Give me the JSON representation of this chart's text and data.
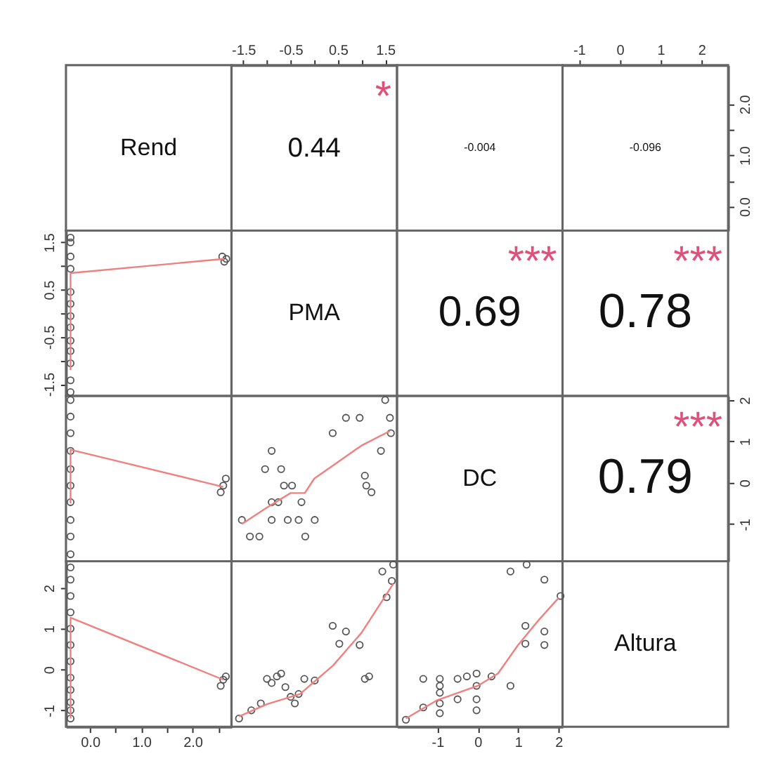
{
  "chart_data": [
    {
      "type": "other",
      "annotations": [
        "Rend"
      ]
    },
    {
      "type": "scatter",
      "annotations": [
        "0.44",
        "*"
      ],
      "xlim": [
        -1.75,
        1.75
      ],
      "xticks": [
        -1.5,
        {
          "value": -1,
          "label": null
        },
        -0.5,
        {
          "value": 0,
          "label": null
        },
        0.5,
        {
          "value": 1,
          "label": null
        },
        1.5
      ],
      "ylim": [
        -0.47,
        2.76
      ],
      "tick_labels": "x"
    },
    {
      "type": "other",
      "annotations": [
        "-0.004"
      ]
    },
    {
      "type": "scatter",
      "annotations": [
        "-0.096"
      ],
      "xlim": [
        -1.4,
        2.65
      ],
      "xticks": [
        -1,
        0,
        1,
        2
      ],
      "ylim": [
        -0.47,
        2.76
      ],
      "yticks": [
        {
          "value": 0,
          "label": "0.0"
        },
        {
          "value": 0.5,
          "label": null
        },
        {
          "value": 1,
          "label": "1.0"
        },
        {
          "value": 1.5,
          "label": null
        },
        {
          "value": 2,
          "label": "2.0"
        }
      ]
    },
    {
      "type": "scatter",
      "xlim": [
        -0.47,
        2.76
      ],
      "ylim": [
        -1.75,
        1.75
      ],
      "yticks": [
        -1.5,
        {
          "value": -1,
          "label": null
        },
        -0.5,
        {
          "value": 0,
          "label": null
        },
        0.5,
        {
          "value": 1,
          "label": null
        },
        1.5
      ],
      "tick_labels": "y",
      "series": [
        {
          "type": "scatter",
          "marker": "circle",
          "color": "#555555",
          "x": [
            -0.38,
            -0.38,
            -0.38,
            -0.38,
            -0.38,
            -0.38,
            -0.38,
            -0.38,
            -0.38,
            -0.38,
            -0.38,
            -0.38,
            -0.38,
            2.58,
            2.62,
            2.66
          ],
          "values": [
            1.6,
            1.5,
            1.2,
            0.94,
            0.45,
            0.2,
            -0.06,
            -0.3,
            -0.58,
            -0.8,
            -1.06,
            -1.42,
            -1.67,
            1.2,
            1.09,
            1.15
          ]
        },
        {
          "type": "line",
          "color": "#f08080",
          "x": [
            -0.38,
            -0.38,
            2.62
          ],
          "values": [
            -1.2,
            0.85,
            1.15
          ]
        }
      ]
    },
    {
      "type": "other",
      "annotations": [
        "PMA"
      ]
    },
    {
      "type": "other",
      "annotations": [
        "0.69",
        "***"
      ]
    },
    {
      "type": "other",
      "annotations": [
        "0.78",
        "***"
      ]
    },
    {
      "type": "scatter",
      "xlim": [
        -0.47,
        2.76
      ],
      "ylim": [
        -1.9,
        2.1
      ],
      "tick_labels": false,
      "series": [
        {
          "type": "scatter",
          "marker": "circle",
          "color": "#555555",
          "x": [
            -0.38,
            -0.38,
            -0.38,
            -0.38,
            -0.38,
            -0.38,
            -0.38,
            -0.38,
            -0.38,
            -0.38,
            2.55,
            2.6,
            2.65
          ],
          "values": [
            2.0,
            1.6,
            1.2,
            0.77,
            0.33,
            -0.07,
            -0.47,
            -0.9,
            -1.3,
            -1.73,
            -0.23,
            -0.07,
            0.1
          ]
        },
        {
          "type": "line",
          "color": "#f08080",
          "x": [
            -0.38,
            -0.38,
            2.6
          ],
          "values": [
            -0.5,
            0.8,
            -0.1
          ]
        }
      ]
    },
    {
      "type": "scatter",
      "xlim": [
        -1.75,
        1.75
      ],
      "ylim": [
        -1.9,
        2.1
      ],
      "tick_labels": false,
      "series": [
        {
          "type": "scatter",
          "marker": "circle",
          "color": "#555555",
          "x": [
            -1.53,
            -1.36,
            -1.16,
            -0.9,
            -1.04,
            -0.7,
            -0.64,
            -0.47,
            -0.9,
            -0.76,
            -0.27,
            -0.9,
            -0.56,
            -0.33,
            0.01,
            -0.19,
            0.39,
            0.67,
            0.96,
            1.5,
            1.41,
            1.07,
            1.1,
            1.21,
            1.6,
            1.62
          ],
          "values": [
            -0.9,
            -1.3,
            -1.3,
            0.77,
            0.33,
            0.33,
            -0.07,
            -0.07,
            -0.47,
            -0.47,
            -0.47,
            -0.9,
            -0.9,
            -0.9,
            -0.9,
            -1.3,
            1.2,
            1.57,
            1.57,
            2.0,
            0.77,
            0.17,
            -0.07,
            -0.23,
            1.57,
            1.2
          ]
        },
        {
          "type": "line",
          "color": "#f08080",
          "x": [
            -1.53,
            -1.0,
            -0.5,
            -0.2,
            0.0,
            0.5,
            1.0,
            1.6
          ],
          "values": [
            -1.0,
            -0.6,
            -0.25,
            -0.25,
            0.1,
            0.5,
            0.9,
            1.25
          ]
        }
      ]
    },
    {
      "type": "other",
      "annotations": [
        "DC"
      ]
    },
    {
      "type": "scatter",
      "annotations": [
        "0.79",
        "***"
      ],
      "xlim": [
        -1.4,
        2.65
      ],
      "ylim": [
        -1.9,
        2.1
      ],
      "yticks": [
        -1,
        0,
        1,
        2
      ],
      "tick_labels": "y"
    },
    {
      "type": "scatter",
      "xlim": [
        -0.47,
        2.76
      ],
      "ylim": [
        -1.4,
        2.65
      ],
      "xticks": [
        {
          "value": 0,
          "label": "0.0"
        },
        {
          "value": 0.5,
          "label": null
        },
        {
          "value": 1,
          "label": "1.0"
        },
        {
          "value": 1.5,
          "label": null
        },
        {
          "value": 2,
          "label": "2.0"
        },
        {
          "value": 2.5,
          "label": null
        }
      ],
      "yticks": [
        -1,
        0,
        1,
        2
      ],
      "series": [
        {
          "type": "scatter",
          "marker": "circle",
          "color": "#555555",
          "x": [
            -0.38,
            -0.38,
            -0.38,
            -0.38,
            -0.38,
            -0.38,
            -0.38,
            -0.38,
            -0.38,
            -0.38,
            -0.38,
            -0.38,
            2.55,
            2.6,
            2.65
          ],
          "values": [
            2.5,
            2.2,
            1.8,
            1.4,
            1.0,
            0.6,
            0.2,
            -0.2,
            -0.5,
            -0.8,
            -1.0,
            -1.2,
            -0.4,
            -0.25,
            -0.17
          ]
        },
        {
          "type": "line",
          "color": "#f08080",
          "x": [
            -0.38,
            -0.38,
            2.6
          ],
          "values": [
            -1.2,
            1.27,
            -0.25
          ]
        }
      ]
    },
    {
      "type": "scatter",
      "xlim": [
        -1.75,
        1.75
      ],
      "ylim": [
        -1.4,
        2.65
      ],
      "tick_labels": false,
      "series": [
        {
          "type": "scatter",
          "marker": "circle",
          "color": "#555555",
          "x": [
            -1.59,
            -1.33,
            -1.13,
            -1.0,
            -0.9,
            -0.79,
            -0.7,
            -0.61,
            -0.5,
            -0.41,
            -0.33,
            -0.21,
            0.01,
            0.39,
            0.67,
            0.53,
            0.96,
            1.07,
            1.16,
            1.44,
            1.53,
            1.64,
            1.67
          ],
          "values": [
            -1.2,
            -1.0,
            -0.83,
            -0.23,
            -0.33,
            -0.17,
            -0.1,
            -0.43,
            -0.67,
            -0.83,
            -0.6,
            -0.23,
            -0.27,
            1.07,
            0.93,
            0.63,
            0.6,
            -0.23,
            -0.17,
            2.4,
            1.77,
            2.17,
            2.57
          ]
        },
        {
          "type": "line",
          "color": "#f08080",
          "x": [
            -1.59,
            -1.0,
            -0.3,
            0.4,
            1.0,
            1.67
          ],
          "values": [
            -1.15,
            -0.85,
            -0.6,
            0.1,
            0.9,
            2.1
          ]
        }
      ]
    },
    {
      "type": "scatter",
      "xlim": [
        -2.0,
        2.1
      ],
      "ylim": [
        -1.4,
        2.65
      ],
      "xticks": [
        -1,
        0,
        1,
        2
      ],
      "tick_labels": "x",
      "series": [
        {
          "type": "scatter",
          "marker": "circle",
          "color": "#555555",
          "x": [
            -1.78,
            -1.35,
            -1.35,
            -0.94,
            -0.94,
            -0.94,
            -0.94,
            -0.94,
            -0.5,
            -0.5,
            -0.27,
            -0.03,
            -0.03,
            -0.03,
            -0.03,
            0.34,
            0.81,
            0.81,
            1.21,
            1.65,
            1.18,
            1.18,
            1.65,
            1.65,
            2.05
          ],
          "values": [
            -1.23,
            -0.93,
            -0.23,
            -0.23,
            -0.4,
            -0.57,
            -0.83,
            -1.07,
            -0.23,
            -0.73,
            -0.17,
            -0.1,
            -0.4,
            -0.73,
            -1.0,
            -0.17,
            -0.4,
            2.4,
            2.57,
            2.2,
            1.07,
            0.63,
            0.93,
            0.6,
            1.8
          ]
        },
        {
          "type": "line",
          "color": "#f08080",
          "x": [
            -1.78,
            -1.0,
            0.0,
            0.5,
            1.0,
            1.5,
            2.0
          ],
          "values": [
            -1.2,
            -0.75,
            -0.4,
            -0.1,
            0.6,
            1.2,
            1.75
          ]
        }
      ]
    },
    {
      "type": "other",
      "annotations": [
        "Altura"
      ]
    }
  ]
}
